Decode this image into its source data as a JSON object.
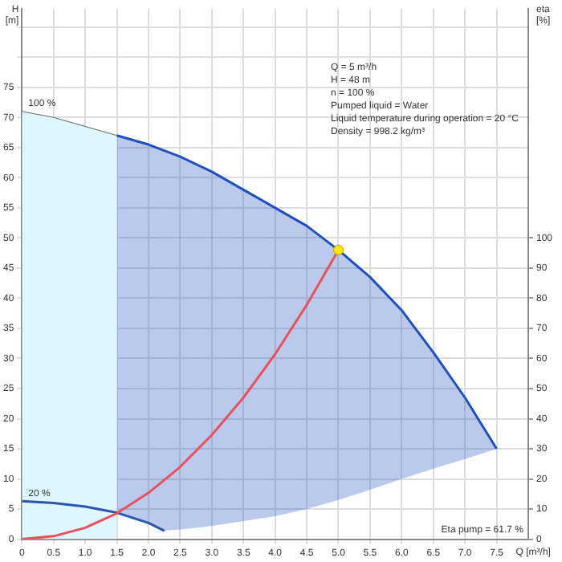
{
  "chart_data": {
    "type": "line",
    "xlabel": "Q [m³/h]",
    "ylabel": "H [m]",
    "y2label": "eta [%]",
    "xlim": [
      0,
      8
    ],
    "xticks": [
      0,
      {
        "value": 0.5,
        "label": "0.5"
      },
      {
        "value": 1,
        "label": "1.0"
      },
      {
        "value": 1.5,
        "label": "1.5"
      },
      {
        "value": 2,
        "label": "2.0"
      },
      {
        "value": 2.5,
        "label": "2.5"
      },
      {
        "value": 3,
        "label": "3.0"
      },
      {
        "value": 3.5,
        "label": "3.5"
      },
      {
        "value": 4,
        "label": "4.0"
      },
      {
        "value": 4.5,
        "label": "4.5"
      },
      {
        "value": 5,
        "label": "5.0"
      },
      {
        "value": 5.5,
        "label": "5.5"
      },
      {
        "value": 6,
        "label": "6.0"
      },
      {
        "value": 6.5,
        "label": "6.5"
      },
      {
        "value": 7,
        "label": "7.0"
      },
      {
        "value": 7.5,
        "label": "7.5"
      }
    ],
    "ylim": [
      0,
      88
    ],
    "yticks": [
      0,
      5,
      10,
      15,
      20,
      25,
      30,
      35,
      40,
      45,
      50,
      55,
      60,
      65,
      70,
      75,
      {
        "value": 80,
        "label": null
      },
      {
        "value": 85,
        "label": null
      }
    ],
    "y2lim": [
      0,
      176
    ],
    "y2ticks": [
      0,
      10,
      20,
      30,
      40,
      50,
      60,
      70,
      80,
      90,
      100
    ],
    "grid": true,
    "legend": false,
    "marker": "none",
    "series": [
      {
        "name": "100 %",
        "type": "area",
        "color": "#e0f6ff",
        "x": [
          0,
          0.5,
          1,
          1.5
        ],
        "values": [
          71,
          70,
          68.5,
          67
        ]
      },
      {
        "type": "line",
        "color": "#1f4fc0",
        "x": [
          1.5,
          2,
          2.25,
          2.5,
          3,
          3.5,
          4,
          4.5,
          5,
          5.5,
          6,
          6.5,
          7,
          7.5
        ],
        "values": [
          67,
          65.5,
          64.5,
          63.5,
          61,
          58,
          55,
          52,
          48,
          43.5,
          38,
          31,
          23.5,
          15
        ],
        "lower": [
          4.4,
          2.7,
          1.4,
          1.6,
          2.2,
          3,
          3.8,
          5,
          6.5,
          8.2,
          10,
          11.7,
          13.3,
          15
        ],
        "upper": [
          67,
          65.5,
          64.5,
          63.5,
          61,
          58,
          55,
          52,
          48,
          43.5,
          38,
          31,
          23.5,
          15
        ]
      },
      {
        "name": "20 %",
        "type": "line",
        "color": "#2a55b0",
        "x": [
          0,
          0.5,
          1,
          1.5,
          2,
          2.25
        ],
        "values": [
          6.3,
          6,
          5.4,
          4.4,
          2.7,
          1.4
        ]
      },
      {
        "type": "line",
        "color": "#e8505b",
        "x": [
          0,
          0.5,
          1,
          1.5,
          2,
          2.5,
          3,
          3.5,
          4,
          4.5,
          5
        ],
        "values": [
          0,
          0.5,
          1.9,
          4.3,
          7.7,
          12,
          17.3,
          23.5,
          30.7,
          38.9,
          48
        ]
      },
      {
        "type": "scatter",
        "color": "#ffe600",
        "marker": "circle",
        "x": [
          5
        ],
        "values": [
          48
        ]
      }
    ],
    "annotations": [
      "Q = 5 m³/h",
      "H = 48 m",
      "n = 100 %",
      "Pumped liquid = Water",
      "Liquid temperature during operation = 20 °C",
      "Density = 998.2 kg/m³",
      "Eta pump = 61.7 %"
    ]
  }
}
